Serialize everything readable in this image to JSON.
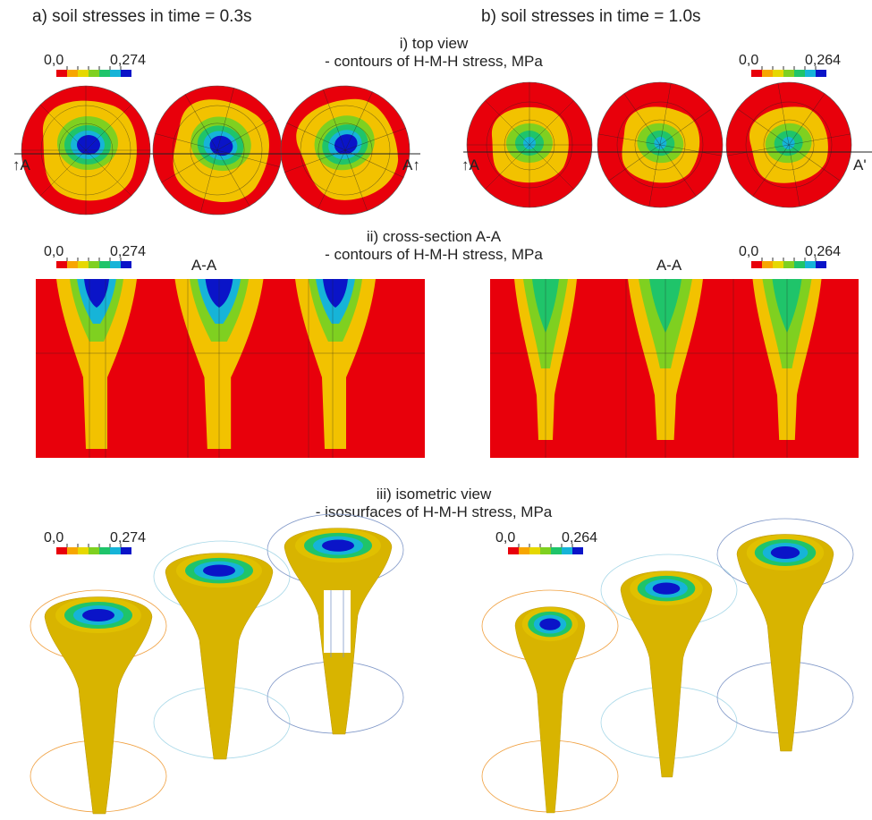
{
  "panels": [
    "a) soil stresses in time = 0.3s",
    "b) soil stresses in time = 1.0s"
  ],
  "sections": [
    {
      "title": "i) top view",
      "subtitle": "- contours of H-M-H stress, MPa"
    },
    {
      "title": "ii) cross-section A-A",
      "subtitle": "- contours of H-M-H stress, MPa"
    },
    {
      "title": "iii) isometric view",
      "subtitle": "- isosurfaces of  H-M-H stress, MPa"
    }
  ],
  "colorbars": [
    {
      "min": "0,0",
      "max": "0,274"
    },
    {
      "min": "0,0",
      "max": "0,264"
    },
    {
      "min": "0,0",
      "max": "0,274"
    },
    {
      "min": "0,0",
      "max": "0,264"
    },
    {
      "min": "0,0",
      "max": "0,274"
    },
    {
      "min": "0,0",
      "max": "0,264"
    }
  ],
  "section_marks": [
    "↑A",
    "A↑",
    "↑A",
    "A'"
  ],
  "section_labels": [
    "A-A",
    "A-A"
  ]
}
